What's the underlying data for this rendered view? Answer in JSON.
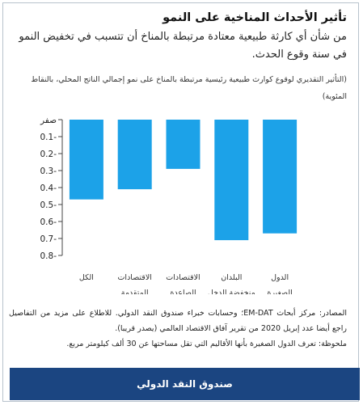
{
  "header": {
    "title": "تأثير الأحداث المناخية على النمو",
    "subtitle": "من شأن أي كارثة طبيعية معتادة مرتبطة بالمناخ أن تتسبب في تخفيض النمو في سنة وقوع الحدث.",
    "note": "(التأثير التقديري لوقوع كوارث طبيعية رئيسية مرتبطة بالمناخ على نمو إجمالي الناتج المحلي، بالنقاط المئوية)"
  },
  "chart_data": {
    "type": "bar",
    "categories": [
      "الكل",
      "الاقتصادات المتقدمة",
      "الاقتصادات الصاعدة",
      "البلدان منخفضة الدخل",
      "الدول الصغيرة"
    ],
    "values": [
      -0.47,
      -0.41,
      -0.29,
      -0.71,
      -0.67
    ],
    "ylim": [
      -0.8,
      0
    ],
    "y_tick_labels": [
      "صفر",
      "0.1-",
      "0.2-",
      "0.3-",
      "0.4-",
      "0.5-",
      "0.6-",
      "0.7-",
      "0.8-"
    ],
    "bar_color": "#1ca2e8",
    "grid": false,
    "legend": "none"
  },
  "footer": {
    "sources_line_1": "المصادر: مركز أبحاث EM-DAT؛ وحسابات خبراء صندوق النقد الدولي. للاطلاع على مزيد من التفاصيل راجع أيضا عدد إبريل 2020 من تقرير آفاق الاقتصاد العالمي (يصدر قريبا).",
    "sources_line_2": "ملحوظة: تعرف الدول الصغيرة بأنها الأقاليم التي تقل مساحتها عن 30 ألف كيلومتر مربع.",
    "brand": "صندوق النقد الدولي",
    "brand_color": "#1b4581"
  }
}
